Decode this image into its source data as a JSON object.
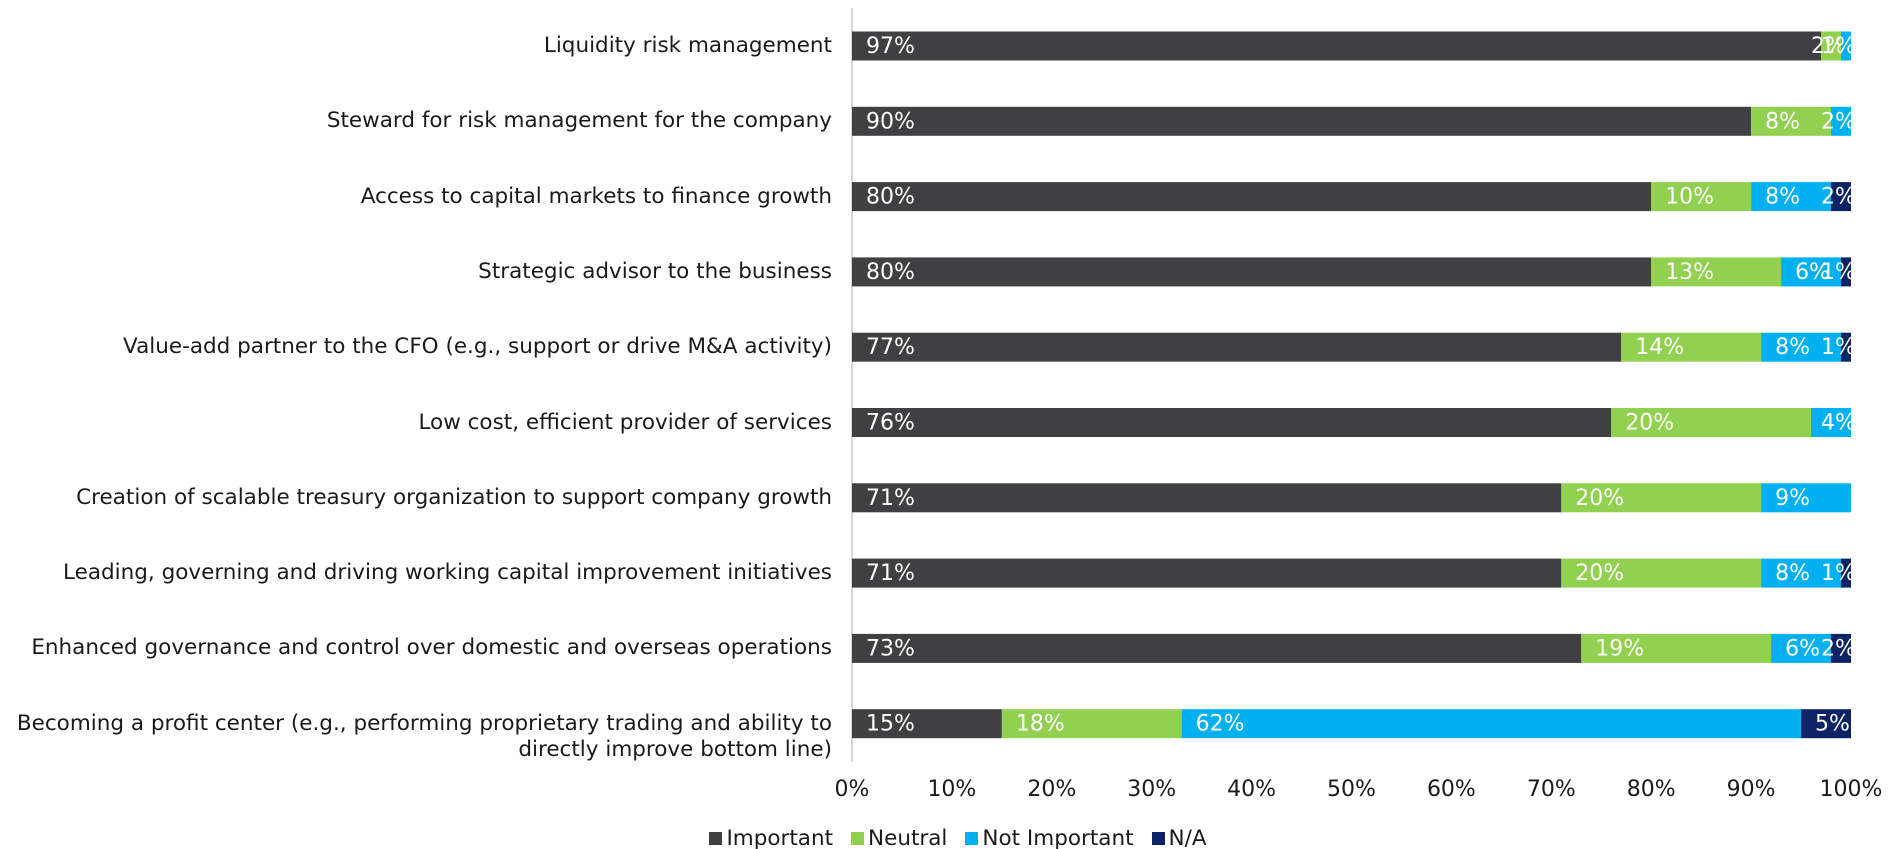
{
  "chart_data": {
    "type": "stacked_barh",
    "categories": [
      "Liquidity risk management",
      "Steward for risk management for the company",
      "Access to capital markets to finance growth",
      "Strategic advisor to the business",
      "Value-add partner to the CFO (e.g., support or drive M&A activity)",
      "Low cost, efficient provider of services",
      "Creation of scalable treasury organization to support company growth",
      "Leading, governing and driving working capital improvement initiatives",
      "Enhanced governance and control over domestic and overseas operations",
      "Becoming a profit center (e.g., performing proprietary trading and ability to directly improve bottom line)"
    ],
    "series": [
      {
        "name": "Important",
        "color": "#404043",
        "values": [
          97,
          90,
          80,
          80,
          77,
          76,
          71,
          71,
          73,
          15
        ],
        "value_labels": [
          "97%",
          "90%",
          "80%",
          "80%",
          "77%",
          "76%",
          "71%",
          "71%",
          "73%",
          "15%"
        ]
      },
      {
        "name": "Neutral",
        "color": "#92d050",
        "values": [
          2,
          8,
          10,
          13,
          14,
          20,
          20,
          20,
          19,
          18
        ],
        "value_labels": [
          "2%",
          "8%",
          "10%",
          "13%",
          "14%",
          "20%",
          "20%",
          "20%",
          "19%",
          "18%"
        ]
      },
      {
        "name": "Not Important",
        "color": "#00b0f0",
        "values": [
          1,
          2,
          8,
          6,
          8,
          4,
          9,
          8,
          6,
          62
        ],
        "value_labels": [
          "1%",
          "2%",
          "8%",
          "6%",
          "8%",
          "4%",
          "9%",
          "8%",
          "6%",
          "62%"
        ]
      },
      {
        "name": "N/A",
        "color": "#0d2366",
        "values": [
          null,
          null,
          2,
          1,
          1,
          null,
          null,
          1,
          2,
          5
        ],
        "value_labels": [
          null,
          null,
          "2%",
          "1%",
          "1%",
          null,
          null,
          "1%",
          "2%",
          "5%"
        ]
      }
    ],
    "xlim": [
      0,
      100
    ],
    "xticks": [
      {
        "value": 0,
        "label": "0%"
      },
      {
        "value": 10,
        "label": "10%"
      },
      {
        "value": 20,
        "label": "20%"
      },
      {
        "value": 30,
        "label": "30%"
      },
      {
        "value": 40,
        "label": "40%"
      },
      {
        "value": 50,
        "label": "50%"
      },
      {
        "value": 60,
        "label": "60%"
      },
      {
        "value": 70,
        "label": "70%"
      },
      {
        "value": 80,
        "label": "80%"
      },
      {
        "value": 90,
        "label": "90%"
      },
      {
        "value": 100,
        "label": "100%"
      }
    ],
    "legend": "bottom"
  }
}
